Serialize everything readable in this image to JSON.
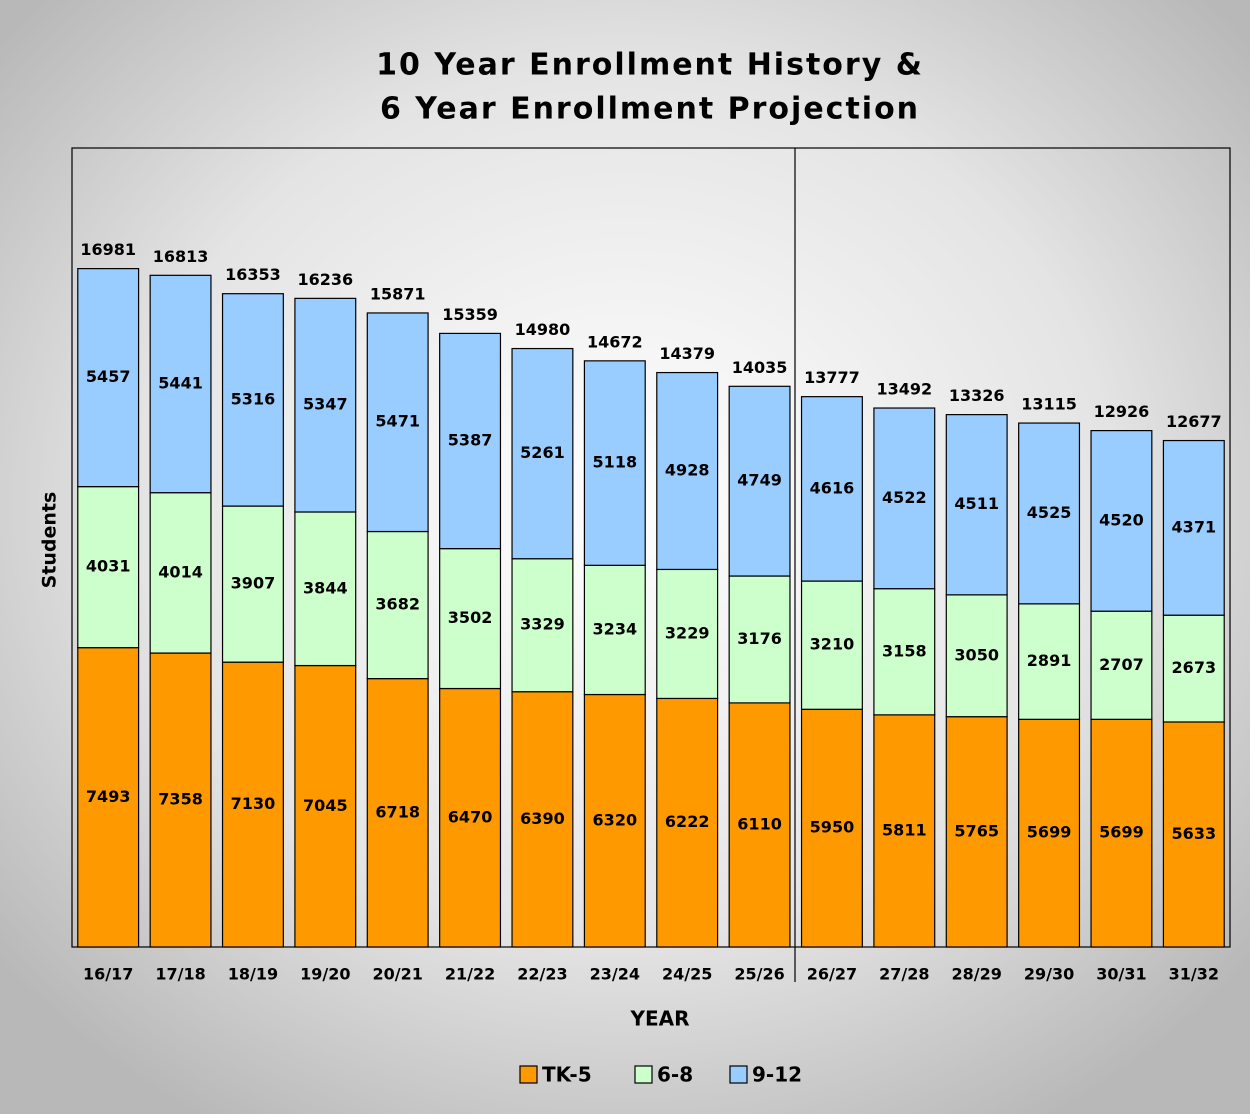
{
  "chart_data": {
    "type": "bar",
    "stacked": true,
    "title": "10 Year Enrollment History &",
    "subtitle": "6 Year Enrollment Projection",
    "x_label": "YEAR",
    "y_label": "Students",
    "categories": [
      "16/17",
      "17/18",
      "18/19",
      "19/20",
      "20/21",
      "21/22",
      "22/23",
      "23/24",
      "24/25",
      "25/26",
      "26/27",
      "27/28",
      "28/29",
      "29/30",
      "30/31",
      "31/32"
    ],
    "series": [
      {
        "name": "TK-5",
        "color": "#ff9900",
        "values": [
          7493,
          7358,
          7130,
          7045,
          6718,
          6470,
          6390,
          6320,
          6222,
          6110,
          5950,
          5811,
          5765,
          5699,
          5699,
          5633
        ]
      },
      {
        "name": "6-8",
        "color": "#ccffcc",
        "values": [
          4031,
          4014,
          3907,
          3844,
          3682,
          3502,
          3329,
          3234,
          3229,
          3176,
          3210,
          3158,
          3050,
          2891,
          2707,
          2673
        ]
      },
      {
        "name": "9-12",
        "color": "#99ccff",
        "values": [
          5457,
          5441,
          5316,
          5347,
          5471,
          5387,
          5261,
          5118,
          4928,
          4749,
          4616,
          4522,
          4511,
          4525,
          4520,
          4371
        ]
      }
    ],
    "totals": [
      16981,
      16813,
      16353,
      16236,
      15871,
      15359,
      14980,
      14672,
      14379,
      14035,
      13777,
      13492,
      13326,
      13115,
      12926,
      12677
    ],
    "ylim": [
      0,
      20000
    ],
    "legend": "bottom"
  }
}
